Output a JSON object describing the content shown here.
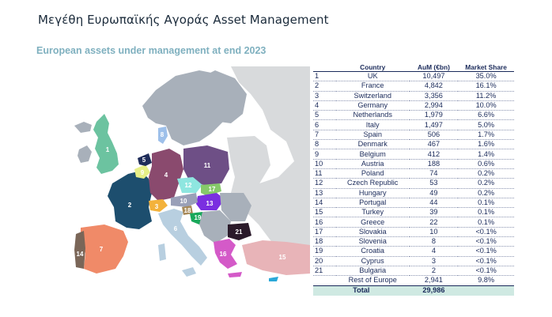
{
  "slide_title": "Μεγέθη Ευρωπαϊκής Αγοράς Asset Management",
  "chart_data": {
    "type": "table",
    "title": "European assets under management at end 2023",
    "columns": [
      "Country",
      "AuM (€bn)",
      "Market Share"
    ],
    "rows": [
      {
        "rank": "1",
        "country": "UK",
        "aum": "10,497",
        "share": "35.0%"
      },
      {
        "rank": "2",
        "country": "France",
        "aum": "4,842",
        "share": "16.1%"
      },
      {
        "rank": "3",
        "country": "Switzerland",
        "aum": "3,356",
        "share": "11.2%"
      },
      {
        "rank": "4",
        "country": "Germany",
        "aum": "2,994",
        "share": "10.0%"
      },
      {
        "rank": "5",
        "country": "Netherlands",
        "aum": "1,979",
        "share": "6.6%"
      },
      {
        "rank": "6",
        "country": "Italy",
        "aum": "1,497",
        "share": "5.0%"
      },
      {
        "rank": "7",
        "country": "Spain",
        "aum": "506",
        "share": "1.7%"
      },
      {
        "rank": "8",
        "country": "Denmark",
        "aum": "467",
        "share": "1.6%"
      },
      {
        "rank": "9",
        "country": "Belgium",
        "aum": "412",
        "share": "1.4%"
      },
      {
        "rank": "10",
        "country": "Austria",
        "aum": "188",
        "share": "0.6%"
      },
      {
        "rank": "11",
        "country": "Poland",
        "aum": "74",
        "share": "0.2%"
      },
      {
        "rank": "12",
        "country": "Czech Republic",
        "aum": "53",
        "share": "0.2%"
      },
      {
        "rank": "13",
        "country": "Hungary",
        "aum": "49",
        "share": "0.2%"
      },
      {
        "rank": "14",
        "country": "Portugal",
        "aum": "44",
        "share": "0.1%"
      },
      {
        "rank": "15",
        "country": "Turkey",
        "aum": "39",
        "share": "0.1%"
      },
      {
        "rank": "16",
        "country": "Greece",
        "aum": "22",
        "share": "0.1%"
      },
      {
        "rank": "17",
        "country": "Slovakia",
        "aum": "10",
        "share": "<0.1%"
      },
      {
        "rank": "18",
        "country": "Slovenia",
        "aum": "8",
        "share": "<0.1%"
      },
      {
        "rank": "19",
        "country": "Croatia",
        "aum": "4",
        "share": "<0.1%"
      },
      {
        "rank": "20",
        "country": "Cyprus",
        "aum": "3",
        "share": "<0.1%"
      },
      {
        "rank": "21",
        "country": "Bulgaria",
        "aum": "2",
        "share": "<0.1%"
      }
    ],
    "rest": {
      "country": "Rest of Europe",
      "aum": "2,941",
      "share": "9.8%"
    },
    "total": {
      "label": "Total",
      "aum": "29,986"
    },
    "map_labels": [
      "1",
      "2",
      "3",
      "4",
      "5",
      "6",
      "7",
      "8",
      "9",
      "10",
      "11",
      "12",
      "13",
      "14",
      "15",
      "16",
      "17",
      "18",
      "19",
      "20",
      "21"
    ],
    "colors": {
      "1": "#6cc3a0",
      "2": "#1d4e6e",
      "3": "#f3b23b",
      "4": "#8a4a6e",
      "5": "#1f2d5a",
      "6": "#b8cfe0",
      "7": "#f08a68",
      "8": "#9ec0ea",
      "9": "#e7ef87",
      "10": "#9aa0b8",
      "11": "#6e4f86",
      "12": "#8ee6e0",
      "13": "#7a2fe0",
      "14": "#7a6658",
      "15": "#e8b4b8",
      "16": "#d45ac8",
      "17": "#86c96a",
      "18": "#a88a5a",
      "19": "#19a85a",
      "20": "#2aa8d8",
      "21": "#2a1a2a",
      "other": "#a8b0ba",
      "far": "#d8dadc"
    }
  }
}
